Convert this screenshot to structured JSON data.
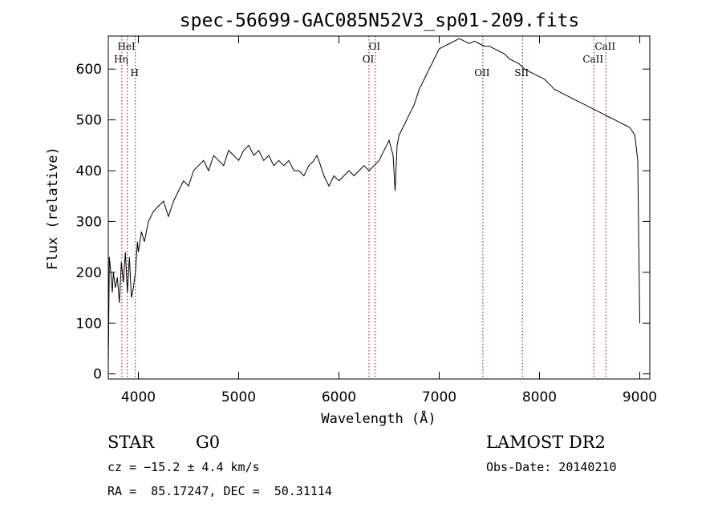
{
  "chart_data": {
    "type": "line",
    "title": "spec-56699-GAC085N52V3_sp01-209.fits",
    "xlabel": "Wavelength (Å)",
    "ylabel": "Flux (relative)",
    "xlim": [
      3700,
      9100
    ],
    "ylim": [
      -10,
      665
    ],
    "xticks": [
      4000,
      5000,
      6000,
      7000,
      8000,
      9000
    ],
    "yticks": [
      0,
      100,
      200,
      300,
      400,
      500,
      600
    ],
    "grid": false,
    "series": [
      {
        "x": [
          3700,
          3710,
          3725,
          3740,
          3750,
          3770,
          3790,
          3810,
          3830,
          3850,
          3870,
          3890,
          3910,
          3930,
          3950,
          3970,
          3990,
          4000,
          4030,
          4060,
          4100,
          4150,
          4200,
          4250,
          4300,
          4350,
          4400,
          4450,
          4500,
          4550,
          4600,
          4650,
          4700,
          4750,
          4800,
          4850,
          4900,
          4950,
          5000,
          5050,
          5100,
          5150,
          5200,
          5250,
          5300,
          5350,
          5400,
          5450,
          5500,
          5550,
          5600,
          5650,
          5700,
          5750,
          5780,
          5800,
          5850,
          5900,
          5950,
          6000,
          6050,
          6100,
          6150,
          6200,
          6250,
          6300,
          6350,
          6400,
          6450,
          6500,
          6540,
          6560,
          6580,
          6600,
          6650,
          6700,
          6750,
          6800,
          6850,
          6900,
          6950,
          7000,
          7050,
          7100,
          7150,
          7200,
          7250,
          7300,
          7350,
          7400,
          7450,
          7500,
          7550,
          7600,
          7650,
          7700,
          7750,
          7800,
          7850,
          7900,
          7950,
          8000,
          8050,
          8100,
          8150,
          8200,
          8250,
          8300,
          8350,
          8400,
          8450,
          8500,
          8550,
          8600,
          8650,
          8700,
          8750,
          8800,
          8850,
          8900,
          8950,
          8980,
          8990,
          9000
        ],
        "y": [
          10,
          230,
          200,
          160,
          200,
          170,
          190,
          140,
          220,
          180,
          240,
          160,
          230,
          150,
          170,
          200,
          260,
          240,
          280,
          260,
          300,
          320,
          330,
          340,
          310,
          340,
          360,
          380,
          370,
          400,
          410,
          420,
          400,
          430,
          420,
          410,
          440,
          430,
          420,
          440,
          450,
          430,
          440,
          420,
          430,
          410,
          420,
          410,
          420,
          400,
          400,
          390,
          410,
          420,
          430,
          420,
          390,
          370,
          390,
          380,
          390,
          400,
          390,
          400,
          410,
          400,
          410,
          420,
          440,
          460,
          430,
          360,
          450,
          470,
          490,
          510,
          530,
          560,
          580,
          600,
          620,
          640,
          645,
          650,
          655,
          660,
          655,
          650,
          655,
          650,
          645,
          645,
          640,
          635,
          630,
          620,
          615,
          610,
          600,
          595,
          590,
          585,
          580,
          570,
          560,
          555,
          550,
          545,
          540,
          535,
          530,
          525,
          520,
          515,
          510,
          505,
          500,
          495,
          490,
          485,
          470,
          420,
          250,
          100
        ]
      }
    ],
    "lines": [
      {
        "label": "HeI",
        "x": 3889,
        "row": 1
      },
      {
        "label": "Hη",
        "x": 3835,
        "row": 2
      },
      {
        "label": "H",
        "x": 3970,
        "row": 3
      },
      {
        "label": "OI",
        "x": 6363,
        "row": 1
      },
      {
        "label": "OI",
        "x": 6300,
        "row": 2
      },
      {
        "label": "OII",
        "x": 7435,
        "row": 3
      },
      {
        "label": "SII",
        "x": 7830,
        "row": 3
      },
      {
        "label": "CaII",
        "x": 8662,
        "row": 1
      },
      {
        "label": "CaII",
        "x": 8542,
        "row": 2
      }
    ],
    "line_color": "#990000"
  },
  "info": {
    "class": "STAR",
    "subclass": "G0",
    "cz": "cz = −15.2 ± 4.4 km/s",
    "radec": "RA =  85.17247, DEC =  50.31114",
    "survey": "LAMOST DR2",
    "obsdate": "Obs-Date: 20140210"
  }
}
